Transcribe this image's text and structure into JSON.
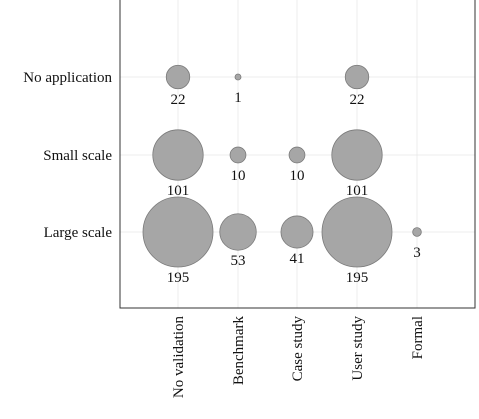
{
  "chart_data": {
    "type": "scatter",
    "subtype": "bubble",
    "grid": true,
    "x_categories": [
      "No validation",
      "Benchmark",
      "Case study",
      "User study",
      "Formal"
    ],
    "y_categories": [
      "No application",
      "Small scale",
      "Large scale"
    ],
    "points": [
      {
        "x": "No validation",
        "y": "No application",
        "value": 22,
        "label": "22"
      },
      {
        "x": "Benchmark",
        "y": "No application",
        "value": 1,
        "label": "1"
      },
      {
        "x": "User study",
        "y": "No application",
        "value": 22,
        "label": "22"
      },
      {
        "x": "No validation",
        "y": "Small scale",
        "value": 101,
        "label": "101"
      },
      {
        "x": "Benchmark",
        "y": "Small scale",
        "value": 10,
        "label": "10"
      },
      {
        "x": "Case study",
        "y": "Small scale",
        "value": 10,
        "label": "10"
      },
      {
        "x": "User study",
        "y": "Small scale",
        "value": 101,
        "label": "101"
      },
      {
        "x": "No validation",
        "y": "Large scale",
        "value": 195,
        "label": "195"
      },
      {
        "x": "Benchmark",
        "y": "Large scale",
        "value": 53,
        "label": "53"
      },
      {
        "x": "Case study",
        "y": "Large scale",
        "value": 41,
        "label": "41"
      },
      {
        "x": "User study",
        "y": "Large scale",
        "value": 195,
        "label": "195"
      },
      {
        "x": "Formal",
        "y": "Large scale",
        "value": 3,
        "label": "3"
      }
    ],
    "colors": {
      "bubble_fill": "#a6a6a6",
      "bubble_stroke": "#7a7a7a"
    }
  }
}
